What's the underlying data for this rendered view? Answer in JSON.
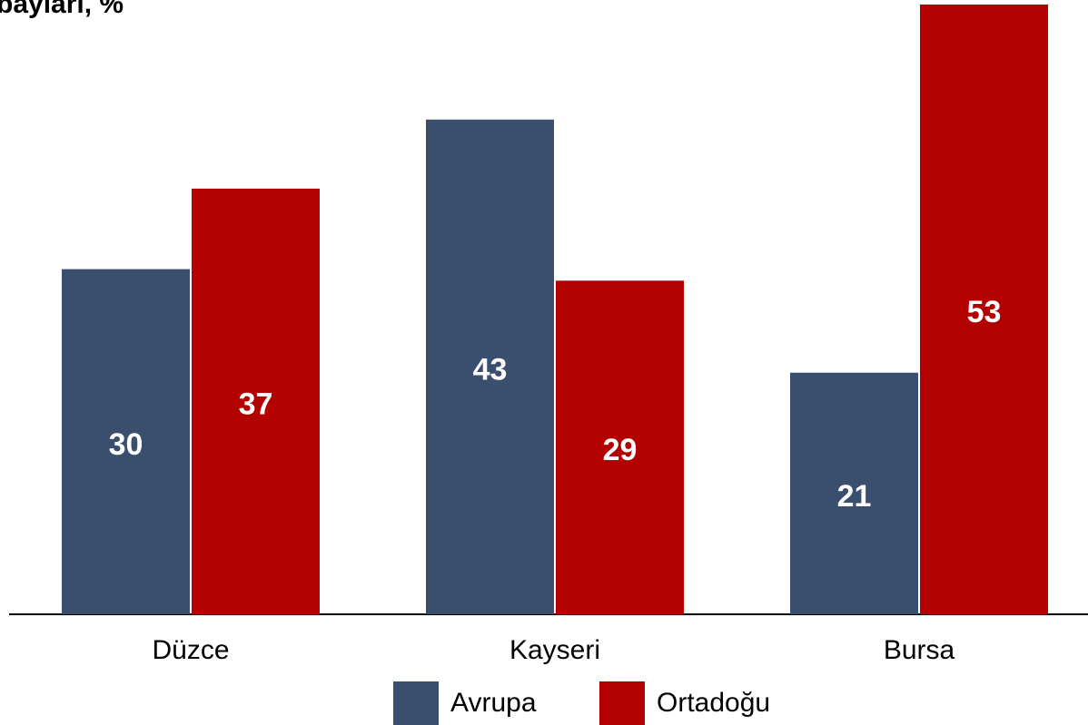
{
  "chart_data": {
    "type": "bar",
    "title": "bayları, %",
    "categories": [
      "Düzce",
      "Kayseri",
      "Bursa"
    ],
    "series": [
      {
        "name": "Avrupa",
        "color": "#3a4f6e",
        "values": [
          30,
          43,
          21
        ]
      },
      {
        "name": "Ortadoğu",
        "color": "#b30000",
        "values": [
          37,
          29,
          53
        ]
      }
    ],
    "ylim": [
      0,
      53
    ],
    "legend": "bottom"
  }
}
